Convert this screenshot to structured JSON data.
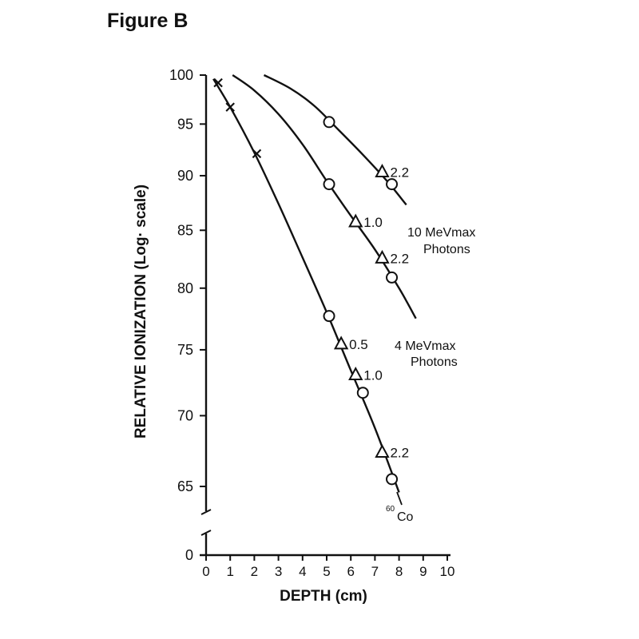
{
  "figure_label": "Figure B",
  "chart_data": {
    "type": "line",
    "title": "",
    "xlabel": "DEPTH (cm)",
    "ylabel": "RELATIVE IONIZATION (Log· scale)",
    "xlim": [
      0,
      10
    ],
    "ylim": [
      65,
      100
    ],
    "y_scale": "log",
    "y_axis_break": true,
    "grid": false,
    "x_ticks": [
      "0",
      "1",
      "2",
      "3",
      "4",
      "5",
      "6",
      "7",
      "8",
      "9",
      "10"
    ],
    "y_ticks": [
      "0",
      "65",
      "70",
      "75",
      "80",
      "85",
      "90",
      "95",
      "100"
    ],
    "series": [
      {
        "name": "10 MeVmax Photons",
        "label_lines": [
          "10 MeVmax",
          "Photons"
        ],
        "curve": [
          [
            2.4,
            100
          ],
          [
            3.5,
            98.6
          ],
          [
            4.5,
            96.8
          ],
          [
            5.5,
            94.4
          ],
          [
            6.5,
            92.0
          ],
          [
            7.5,
            89.5
          ],
          [
            8.3,
            87.3
          ]
        ],
        "circles": [
          [
            5.1,
            95.2
          ],
          [
            7.7,
            89.2
          ]
        ],
        "triangles": [
          {
            "x": 7.3,
            "y": 90.4,
            "label": "2.2"
          }
        ]
      },
      {
        "name": "4 MeVmax Photons",
        "label_lines": [
          "4 MeVmax",
          "Photons"
        ],
        "curve": [
          [
            1.1,
            100
          ],
          [
            2.0,
            98.4
          ],
          [
            3.0,
            96.0
          ],
          [
            4.0,
            93.0
          ],
          [
            5.0,
            89.5
          ],
          [
            6.0,
            86.3
          ],
          [
            7.0,
            83.3
          ],
          [
            8.0,
            80.0
          ],
          [
            8.7,
            77.5
          ]
        ],
        "circles": [
          [
            5.1,
            89.2
          ],
          [
            7.7,
            80.9
          ]
        ],
        "triangles": [
          {
            "x": 6.2,
            "y": 85.8,
            "label": "1.0"
          },
          {
            "x": 7.3,
            "y": 82.6,
            "label": "2.2"
          }
        ]
      },
      {
        "name": "60Co",
        "label_lines": [
          "60",
          "Co"
        ],
        "curve": [
          [
            0.3,
            99.6
          ],
          [
            1.0,
            96.7
          ],
          [
            2.0,
            92.2
          ],
          [
            3.0,
            87.4
          ],
          [
            4.0,
            82.6
          ],
          [
            5.0,
            78.0
          ],
          [
            6.0,
            73.4
          ],
          [
            7.0,
            69.1
          ],
          [
            8.0,
            64.6
          ]
        ],
        "crosses": [
          [
            0.5,
            99.2
          ],
          [
            1.0,
            96.7
          ],
          [
            2.1,
            92.1
          ]
        ],
        "circles": [
          [
            5.1,
            77.7
          ],
          [
            6.5,
            71.7
          ],
          [
            7.7,
            65.5
          ]
        ],
        "triangles": [
          {
            "x": 5.6,
            "y": 75.5,
            "label": "0.5"
          },
          {
            "x": 6.2,
            "y": 73.1,
            "label": "1.0"
          },
          {
            "x": 7.3,
            "y": 67.4,
            "label": "2.2"
          }
        ]
      }
    ]
  }
}
